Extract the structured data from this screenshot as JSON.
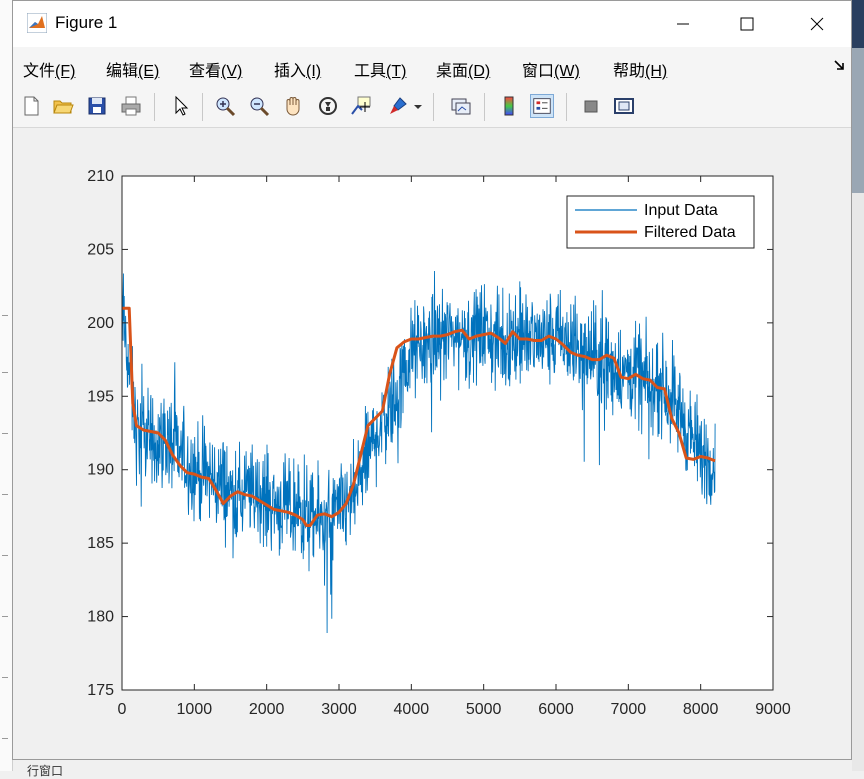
{
  "window": {
    "title": "Figure 1",
    "controls": [
      "minimize",
      "maximize",
      "close"
    ]
  },
  "menu": {
    "items": [
      {
        "name": "文件",
        "key": "(F)"
      },
      {
        "name": "编辑",
        "key": "(E)"
      },
      {
        "name": "查看",
        "key": "(V)"
      },
      {
        "name": "插入",
        "key": "(I)"
      },
      {
        "name": "工具",
        "key": "(T)"
      },
      {
        "name": "桌面",
        "key": "(D)"
      },
      {
        "name": "窗口",
        "key": "(W)"
      },
      {
        "name": "帮助",
        "key": "(H)"
      }
    ]
  },
  "toolbar": {
    "icons": [
      "new-figure-icon",
      "open-file-icon",
      "save-icon",
      "print-icon",
      "pointer-icon",
      "zoom-in-icon",
      "zoom-out-icon",
      "pan-hand-icon",
      "rotate-3d-icon",
      "data-cursor-icon",
      "brush-icon",
      "brush-dropdown-icon",
      "link-plot-icon",
      "colorbar-icon",
      "legend-icon",
      "hide-plot-tools-icon",
      "show-plot-tools-icon"
    ]
  },
  "bottom_text": "行窗口",
  "chart_data": {
    "type": "line",
    "xlim": [
      0,
      9000
    ],
    "ylim": [
      175,
      210
    ],
    "x_ticks": [
      "0",
      "1000",
      "2000",
      "3000",
      "4000",
      "5000",
      "6000",
      "7000",
      "8000",
      "9000"
    ],
    "y_ticks": [
      "175",
      "180",
      "185",
      "190",
      "195",
      "200",
      "205",
      "210"
    ],
    "grid": false,
    "legend_position": "top-right",
    "colors": {
      "input": "#0072bd",
      "filtered": "#d95319"
    },
    "series": [
      {
        "name": "Input Data",
        "x": [
          0,
          200,
          400,
          600,
          800,
          1000,
          1200,
          1400,
          1600,
          1800,
          2000,
          2200,
          2400,
          2600,
          2800,
          3000,
          3200,
          3400,
          3600,
          3800,
          4000,
          4200,
          4400,
          4600,
          4800,
          5000,
          5200,
          5400,
          5600,
          5800,
          6000,
          6200,
          6400,
          6600,
          6800,
          7000,
          7200,
          7400,
          7600,
          7800,
          8000,
          8200
        ],
        "y": [
          201,
          192.5,
          192,
          192,
          191,
          190,
          189.5,
          189,
          188,
          188.5,
          188,
          187.5,
          187,
          186.5,
          186.5,
          187,
          188,
          191,
          193.5,
          195,
          198,
          198.5,
          199,
          199.2,
          199,
          199.5,
          198.5,
          199,
          199,
          198.8,
          199,
          198.5,
          198,
          197.5,
          197,
          196.5,
          196,
          196,
          195,
          193,
          191,
          190.5
        ]
      },
      {
        "name": "Filtered Data",
        "x": [
          0,
          100,
          150,
          200,
          300,
          400,
          500,
          600,
          700,
          800,
          900,
          1000,
          1100,
          1200,
          1300,
          1400,
          1500,
          1600,
          1700,
          1800,
          1900,
          2000,
          2100,
          2200,
          2300,
          2400,
          2500,
          2550,
          2600,
          2700,
          2800,
          2900,
          3000,
          3100,
          3200,
          3300,
          3400,
          3500,
          3600,
          3700,
          3800,
          3900,
          4000,
          4100,
          4200,
          4300,
          4400,
          4500,
          4600,
          4700,
          4800,
          4900,
          5000,
          5100,
          5200,
          5300,
          5400,
          5500,
          5600,
          5700,
          5800,
          5900,
          6000,
          6100,
          6200,
          6300,
          6400,
          6500,
          6600,
          6700,
          6800,
          6900,
          7000,
          7100,
          7200,
          7300,
          7400,
          7500,
          7600,
          7700,
          7800,
          7900,
          8000,
          8100,
          8200
        ],
        "y": [
          201,
          201,
          194.5,
          193,
          192.7,
          192.6,
          192.5,
          192,
          191,
          190.3,
          189.8,
          189.7,
          189.5,
          189.4,
          188.6,
          187.7,
          188.2,
          188.5,
          188.3,
          188.2,
          187.9,
          187.6,
          187.3,
          187.2,
          187.1,
          186.9,
          186.6,
          186.2,
          186.2,
          186.9,
          187,
          186.8,
          187.1,
          187.7,
          189,
          191,
          193,
          193.5,
          194,
          196.5,
          198.3,
          198.7,
          198.9,
          198.9,
          199,
          199.1,
          199.1,
          199.2,
          199.4,
          199.5,
          198.9,
          199.1,
          199.2,
          199.3,
          199,
          198.6,
          199.4,
          198.9,
          198.9,
          198.8,
          198.8,
          199.1,
          198.9,
          198.5,
          198,
          197.8,
          197.7,
          197.5,
          197.5,
          197.8,
          197.6,
          196.3,
          196.2,
          196.5,
          196.2,
          196.1,
          195.6,
          195.5,
          193.5,
          192.5,
          190.8,
          190.7,
          190.9,
          190.8,
          190.6
        ]
      }
    ]
  }
}
